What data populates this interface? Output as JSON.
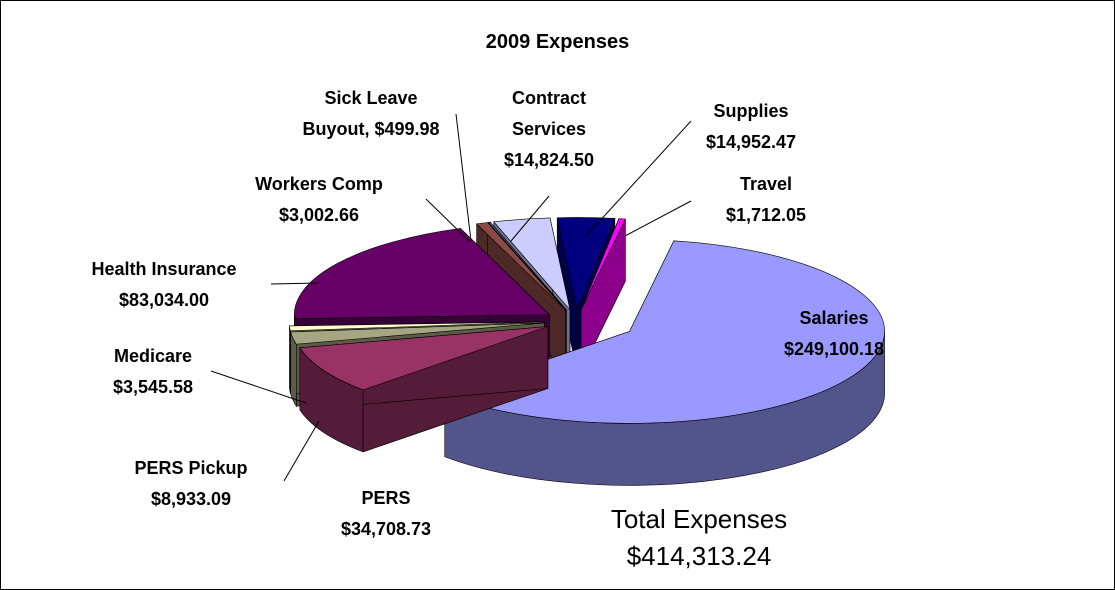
{
  "chart_data": {
    "type": "pie",
    "title": "2009 Expenses",
    "categories": [
      "Salaries",
      "PERS",
      "PERS Pickup",
      "Medicare",
      "Health Insurance",
      "Workers Comp",
      "Sick Leave Buyout,",
      "Contract Services",
      "Supplies",
      "Travel"
    ],
    "values": [
      249100.18,
      34708.73,
      8933.09,
      3545.58,
      83034.0,
      3002.66,
      499.98,
      14824.5,
      14952.47,
      1712.05
    ],
    "value_labels": [
      "$249,100.18",
      "$34,708.73",
      "$8,933.09",
      "$3,545.58",
      "$83,034.00",
      "$3,002.66",
      "$499.98",
      "$14,824.50",
      "$14,952.47",
      "$1,712.05"
    ],
    "colors": [
      "#9999ff",
      "#993366",
      "#a6a683",
      "#ffffcc",
      "#660066",
      "#8b4a45",
      "#4a6fa8",
      "#ccccff",
      "#000080",
      "#ff00ff"
    ],
    "annotations": [
      "Total Expenses",
      "$414,313.24"
    ]
  }
}
